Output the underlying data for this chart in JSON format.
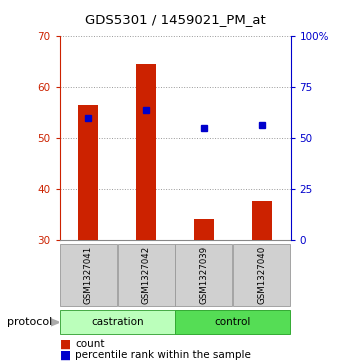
{
  "title": "GDS5301 / 1459021_PM_at",
  "samples": [
    "GSM1327041",
    "GSM1327042",
    "GSM1327039",
    "GSM1327040"
  ],
  "count_values": [
    56.5,
    64.5,
    34.0,
    37.5
  ],
  "percentile_values": [
    54.0,
    55.5,
    52.0,
    52.5
  ],
  "bar_bottom": 30,
  "ylim_left": [
    30,
    70
  ],
  "ylim_right": [
    0,
    100
  ],
  "yticks_left": [
    30,
    40,
    50,
    60,
    70
  ],
  "yticks_right": [
    0,
    25,
    50,
    75,
    100
  ],
  "yticklabels_right": [
    "0",
    "25",
    "50",
    "75",
    "100%"
  ],
  "bar_color": "#cc2200",
  "marker_color": "#0000cc",
  "protocol_label": "protocol",
  "legend_count_label": "count",
  "legend_percentile_label": "percentile rank within the sample",
  "background_color": "#ffffff",
  "plot_bg_color": "#ffffff",
  "grid_color": "#999999",
  "sample_box_color": "#d0d0d0",
  "castration_color": "#bbffbb",
  "control_color": "#55dd55"
}
